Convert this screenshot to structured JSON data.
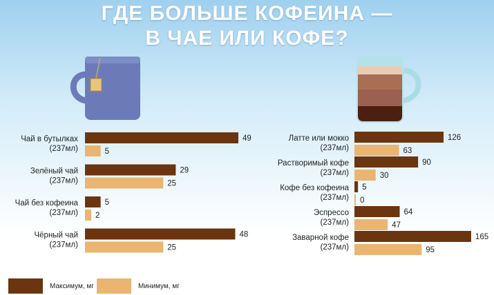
{
  "title_line1": "ГДЕ БОЛЬШЕ КОФЕИНА —",
  "title_line2": "В ЧАЕ ИЛИ КОФЕ?",
  "colors": {
    "max": "#6b3510",
    "min": "#eab570"
  },
  "legend": {
    "max_label": "Максимум, мг",
    "min_label": "Минимум, мг"
  },
  "chart_data": [
    {
      "type": "bar",
      "orientation": "horizontal",
      "categories": [
        [
          "Чай в бутылках",
          "(237мл)"
        ],
        [
          "Зелёный чай",
          "(237мл)"
        ],
        [
          "Чай без кофеина",
          "(237мл)"
        ],
        [
          "Чёрный чай",
          "(237мл)"
        ]
      ],
      "series": [
        {
          "name": "Максимум, мг",
          "values": [
            49,
            29,
            5,
            48
          ]
        },
        {
          "name": "Минимум, мг",
          "values": [
            5,
            25,
            2,
            25
          ]
        }
      ]
    },
    {
      "type": "bar",
      "orientation": "horizontal",
      "categories": [
        [
          "Латте или мокко",
          "(237мл)"
        ],
        [
          "Растворимый кофе",
          "(237мл)"
        ],
        [
          "Кофе без кофеина",
          "(237мл)"
        ],
        [
          "Эспрессо",
          "(237мл)"
        ],
        [
          "Заварной кофе",
          "(237мл)"
        ]
      ],
      "series": [
        {
          "name": "Максимум, мг",
          "values": [
            126,
            90,
            5,
            64,
            165
          ]
        },
        {
          "name": "Минимум, мг",
          "values": [
            63,
            30,
            0,
            47,
            95
          ]
        }
      ]
    }
  ]
}
